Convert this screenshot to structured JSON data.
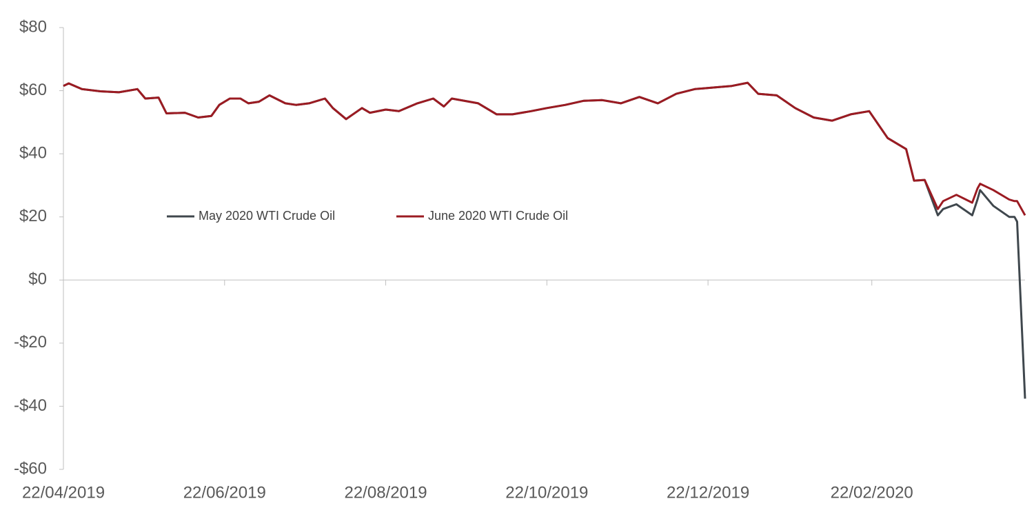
{
  "chart_data": {
    "type": "line",
    "x": [
      "22/04/2019",
      "24/04/2019",
      "29/04/2019",
      "06/05/2019",
      "13/05/2019",
      "20/05/2019",
      "23/05/2019",
      "28/05/2019",
      "31/05/2019",
      "07/06/2019",
      "12/06/2019",
      "17/06/2019",
      "20/06/2019",
      "24/06/2019",
      "28/06/2019",
      "01/07/2019",
      "05/07/2019",
      "09/07/2019",
      "15/07/2019",
      "19/07/2019",
      "24/07/2019",
      "30/07/2019",
      "02/08/2019",
      "07/08/2019",
      "13/08/2019",
      "16/08/2019",
      "22/08/2019",
      "27/08/2019",
      "03/09/2019",
      "09/09/2019",
      "13/09/2019",
      "16/09/2019",
      "26/09/2019",
      "03/10/2019",
      "09/10/2019",
      "16/10/2019",
      "22/10/2019",
      "29/10/2019",
      "05/11/2019",
      "12/11/2019",
      "19/11/2019",
      "26/11/2019",
      "03/12/2019",
      "10/12/2019",
      "17/12/2019",
      "24/12/2019",
      "31/12/2019",
      "06/01/2020",
      "10/01/2020",
      "17/01/2020",
      "24/01/2020",
      "31/01/2020",
      "07/02/2020",
      "14/02/2020",
      "21/02/2020",
      "28/02/2020",
      "06/03/2020",
      "09/03/2020",
      "13/03/2020",
      "18/03/2020",
      "20/03/2020",
      "25/03/2020",
      "31/03/2020",
      "02/04/2020",
      "03/04/2020",
      "08/04/2020",
      "14/04/2020",
      "16/04/2020",
      "17/04/2020",
      "20/04/2020"
    ],
    "series": [
      {
        "name": "May 2020 WTI Crude Oil",
        "color": "#3f474d",
        "values": [
          61.5,
          62.3,
          60.5,
          59.8,
          59.5,
          60.5,
          57.5,
          57.8,
          52.8,
          53,
          51.5,
          52,
          55.5,
          57.5,
          57.5,
          56,
          56.5,
          58.5,
          56,
          55.5,
          56,
          57.5,
          54.5,
          51,
          54.5,
          53,
          54,
          53.5,
          56,
          57.5,
          55,
          57.5,
          56,
          52.5,
          52.5,
          53.5,
          54.5,
          55.5,
          56.8,
          57,
          56,
          58,
          56,
          59,
          60.5,
          61,
          61.5,
          62.5,
          59,
          58.5,
          54.5,
          51.5,
          50.5,
          52.5,
          53.5,
          45,
          41.5,
          31.5,
          31.7,
          20.5,
          22.5,
          24,
          20.5,
          25.5,
          28.5,
          23.5,
          20,
          20,
          18.5,
          -37.6
        ]
      },
      {
        "name": "June 2020 WTI Crude Oil",
        "color": "#9b1b22",
        "values": [
          61.5,
          62.3,
          60.5,
          59.8,
          59.5,
          60.5,
          57.5,
          57.8,
          52.8,
          53,
          51.5,
          52,
          55.5,
          57.5,
          57.5,
          56,
          56.5,
          58.5,
          56,
          55.5,
          56,
          57.5,
          54.5,
          51,
          54.5,
          53,
          54,
          53.5,
          56,
          57.5,
          55,
          57.5,
          56,
          52.5,
          52.5,
          53.5,
          54.5,
          55.5,
          56.8,
          57,
          56,
          58,
          56,
          59,
          60.5,
          61,
          61.5,
          62.5,
          59,
          58.5,
          54.5,
          51.5,
          50.5,
          52.5,
          53.5,
          45,
          41.5,
          31.5,
          31.7,
          22.5,
          25,
          27,
          24.5,
          29,
          30.5,
          28.5,
          25.5,
          25,
          25,
          20.5
        ]
      }
    ],
    "xlim": [
      "22/04/2019",
      "20/04/2020"
    ],
    "xticks": [
      "22/04/2019",
      "22/06/2019",
      "22/08/2019",
      "22/10/2019",
      "22/12/2019",
      "22/02/2020"
    ],
    "ylim": [
      -60,
      80
    ],
    "yticks": [
      {
        "value": -60,
        "label": "-$60"
      },
      {
        "value": -40,
        "label": "-$40"
      },
      {
        "value": -20,
        "label": "-$20"
      },
      {
        "value": 0,
        "label": "$0"
      },
      {
        "value": 20,
        "label": "$20"
      },
      {
        "value": 40,
        "label": "$40"
      },
      {
        "value": 60,
        "label": "$60"
      },
      {
        "value": 80,
        "label": "$80"
      }
    ]
  }
}
